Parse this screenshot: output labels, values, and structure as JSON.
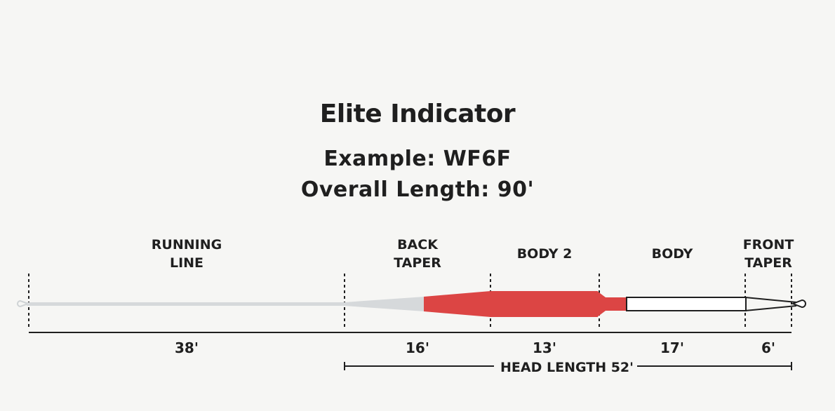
{
  "title": "Elite Indicator",
  "example": "Example: WF6F",
  "overall_length": "Overall Length: 90'",
  "segments": [
    {
      "name_line1": "RUNNING",
      "name_line2": "LINE",
      "length": "38'"
    },
    {
      "name_line1": "BACK",
      "name_line2": "TAPER",
      "length": "16'"
    },
    {
      "name_line1": "BODY 2",
      "name_line2": "",
      "length": "13'"
    },
    {
      "name_line1": "BODY",
      "name_line2": "",
      "length": "17'"
    },
    {
      "name_line1": "FRONT",
      "name_line2": "TAPER",
      "length": "6'"
    }
  ],
  "head_length": "HEAD LENGTH 52'",
  "colors": {
    "running_line": "#d6d9db",
    "red": "#dc4544",
    "body_white": "#ffffff",
    "ink": "#1f1f1f"
  }
}
